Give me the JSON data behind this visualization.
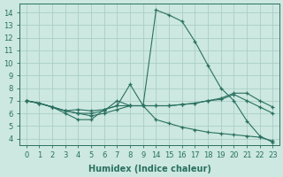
{
  "xlabel": "Humidex (Indice chaleur)",
  "background_color": "#cce8e0",
  "grid_color": "#aacec6",
  "line_color": "#2a7060",
  "tick_labels_x": [
    "0",
    "1",
    "2",
    "3",
    "4",
    "5",
    "6",
    "7",
    "8",
    "9",
    "14",
    "15",
    "16",
    "17",
    "18",
    "19",
    "20",
    "21",
    "22",
    "23"
  ],
  "yticks": [
    4,
    5,
    6,
    7,
    8,
    9,
    10,
    11,
    12,
    13,
    14
  ],
  "ylim": [
    3.5,
    14.7
  ],
  "lines": [
    {
      "xi": [
        0,
        1,
        2,
        3,
        4,
        5,
        6,
        7,
        8,
        9,
        10,
        11,
        12,
        13,
        14,
        15,
        16,
        17,
        18,
        19
      ],
      "y": [
        7.0,
        6.8,
        6.5,
        6.0,
        5.5,
        5.5,
        6.3,
        6.6,
        8.3,
        6.6,
        14.2,
        13.8,
        13.3,
        11.7,
        9.8,
        8.0,
        7.0,
        5.4,
        4.2,
        3.7
      ]
    },
    {
      "xi": [
        0,
        1,
        2,
        3,
        4,
        5,
        6,
        7,
        8,
        9,
        10,
        11,
        12,
        13,
        14,
        15,
        16,
        17,
        18,
        19
      ],
      "y": [
        7.0,
        6.8,
        6.5,
        6.2,
        6.0,
        6.0,
        6.2,
        7.0,
        6.6,
        6.6,
        6.6,
        6.6,
        6.7,
        6.8,
        7.0,
        7.2,
        7.6,
        7.6,
        7.0,
        6.5
      ]
    },
    {
      "xi": [
        0,
        1,
        2,
        3,
        4,
        5,
        6,
        7,
        8,
        9,
        10,
        11,
        12,
        13,
        14,
        15,
        16,
        17,
        18,
        19
      ],
      "y": [
        7.0,
        6.8,
        6.5,
        6.2,
        6.0,
        5.8,
        6.0,
        6.3,
        6.6,
        6.6,
        6.6,
        6.6,
        6.7,
        6.8,
        7.0,
        7.1,
        7.5,
        7.0,
        6.5,
        6.0
      ]
    },
    {
      "xi": [
        0,
        1,
        2,
        3,
        4,
        5,
        6,
        7,
        8,
        9,
        10,
        11,
        12,
        13,
        14,
        15,
        16,
        17,
        18,
        19
      ],
      "y": [
        7.0,
        6.8,
        6.5,
        6.2,
        6.3,
        6.2,
        6.3,
        6.6,
        6.6,
        6.6,
        5.5,
        5.2,
        4.9,
        4.7,
        4.5,
        4.4,
        4.3,
        4.2,
        4.1,
        3.8
      ]
    }
  ]
}
